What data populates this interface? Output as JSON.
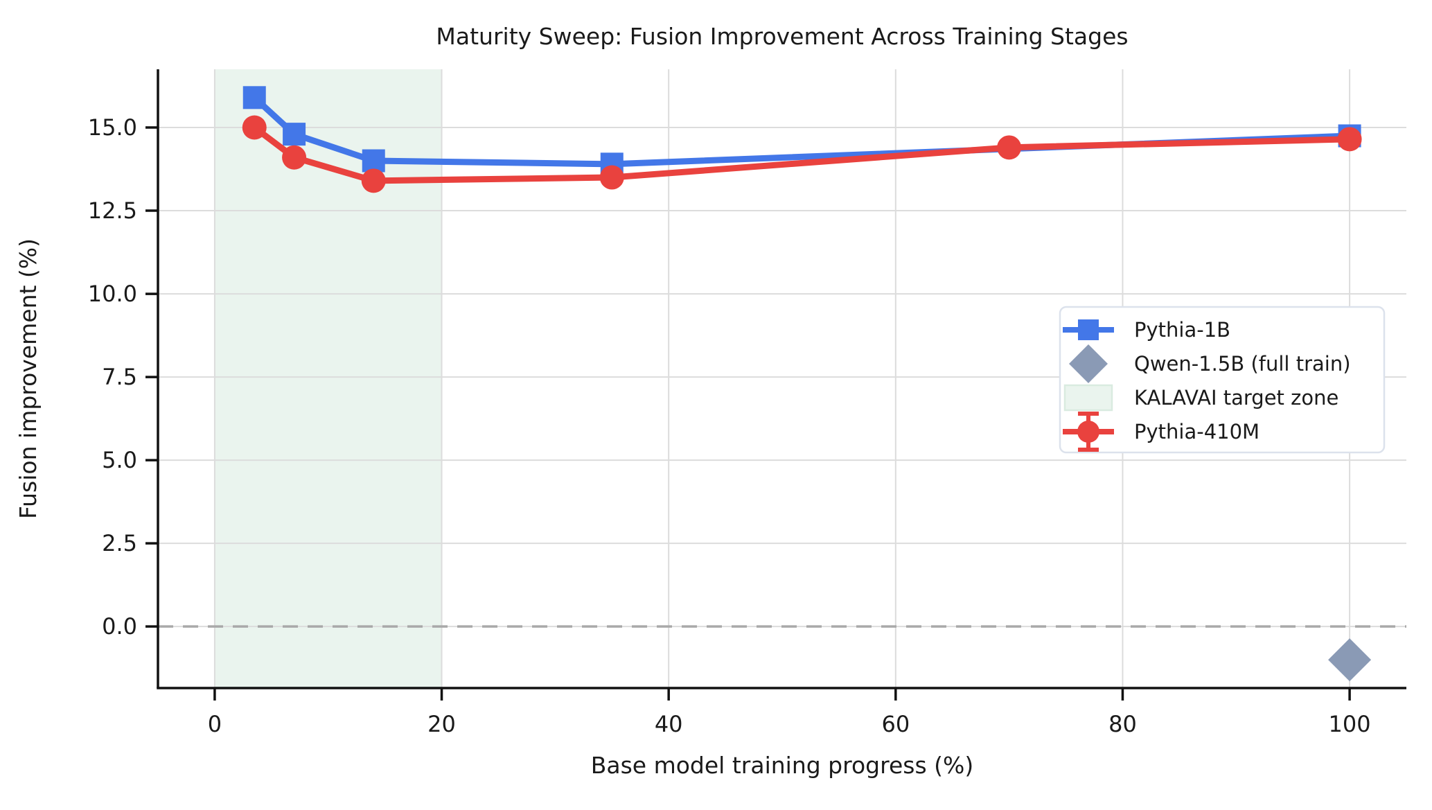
{
  "chart_data": {
    "type": "line",
    "title": "Maturity Sweep: Fusion Improvement Across Training Stages",
    "xlabel": "Base model training progress (%)",
    "ylabel": "Fusion improvement (%)",
    "xlim": [
      -5,
      105
    ],
    "ylim": [
      -1.85,
      16.75
    ],
    "x_ticks": [
      0,
      20,
      40,
      60,
      80,
      100
    ],
    "x_tick_labels": [
      "0",
      "20",
      "40",
      "60",
      "80",
      "100"
    ],
    "y_ticks": [
      0.0,
      2.5,
      5.0,
      7.5,
      10.0,
      12.5,
      15.0
    ],
    "y_tick_labels": [
      "0.0",
      "2.5",
      "5.0",
      "7.5",
      "10.0",
      "12.5",
      "15.0"
    ],
    "grid": true,
    "grid_color": "#dcdcdc",
    "zero_line": {
      "y": 0,
      "style": "dashed",
      "color": "#a9a9a9"
    },
    "target_zone": {
      "label": "KALAVAI target zone",
      "x_start": 0,
      "x_end": 20,
      "fill": "#eaf4ee",
      "edge": "#d9ebe0"
    },
    "series": [
      {
        "name": "Pythia-1B",
        "marker": "square",
        "color": "#4377e8",
        "x": [
          3.5,
          7,
          14,
          35,
          100
        ],
        "y": [
          15.9,
          14.8,
          14.0,
          13.9,
          14.75
        ]
      },
      {
        "name": "Pythia-410M",
        "marker": "circle",
        "color": "#e9423e",
        "x": [
          3.5,
          7,
          14,
          35,
          70,
          100
        ],
        "y": [
          15.0,
          14.1,
          13.4,
          13.5,
          14.4,
          14.65
        ]
      }
    ],
    "point_series": [
      {
        "name": "Qwen-1.5B (full train)",
        "marker": "diamond",
        "color": "#8a9ab5",
        "x": [
          100
        ],
        "y": [
          -1.0
        ]
      }
    ],
    "legend": {
      "position": "center-right",
      "border_color": "#dce2ec",
      "entries": [
        {
          "label": "Pythia-1B",
          "swatch": "line-square",
          "color": "#4377e8"
        },
        {
          "label": "Qwen-1.5B (full train)",
          "swatch": "diamond",
          "color": "#8a9ab5"
        },
        {
          "label": "KALAVAI target zone",
          "swatch": "patch",
          "color": "#eaf4ee",
          "edge": "#d9ebe0"
        },
        {
          "label": "Pythia-410M",
          "swatch": "errorbar-circle",
          "color": "#e9423e"
        }
      ]
    }
  }
}
